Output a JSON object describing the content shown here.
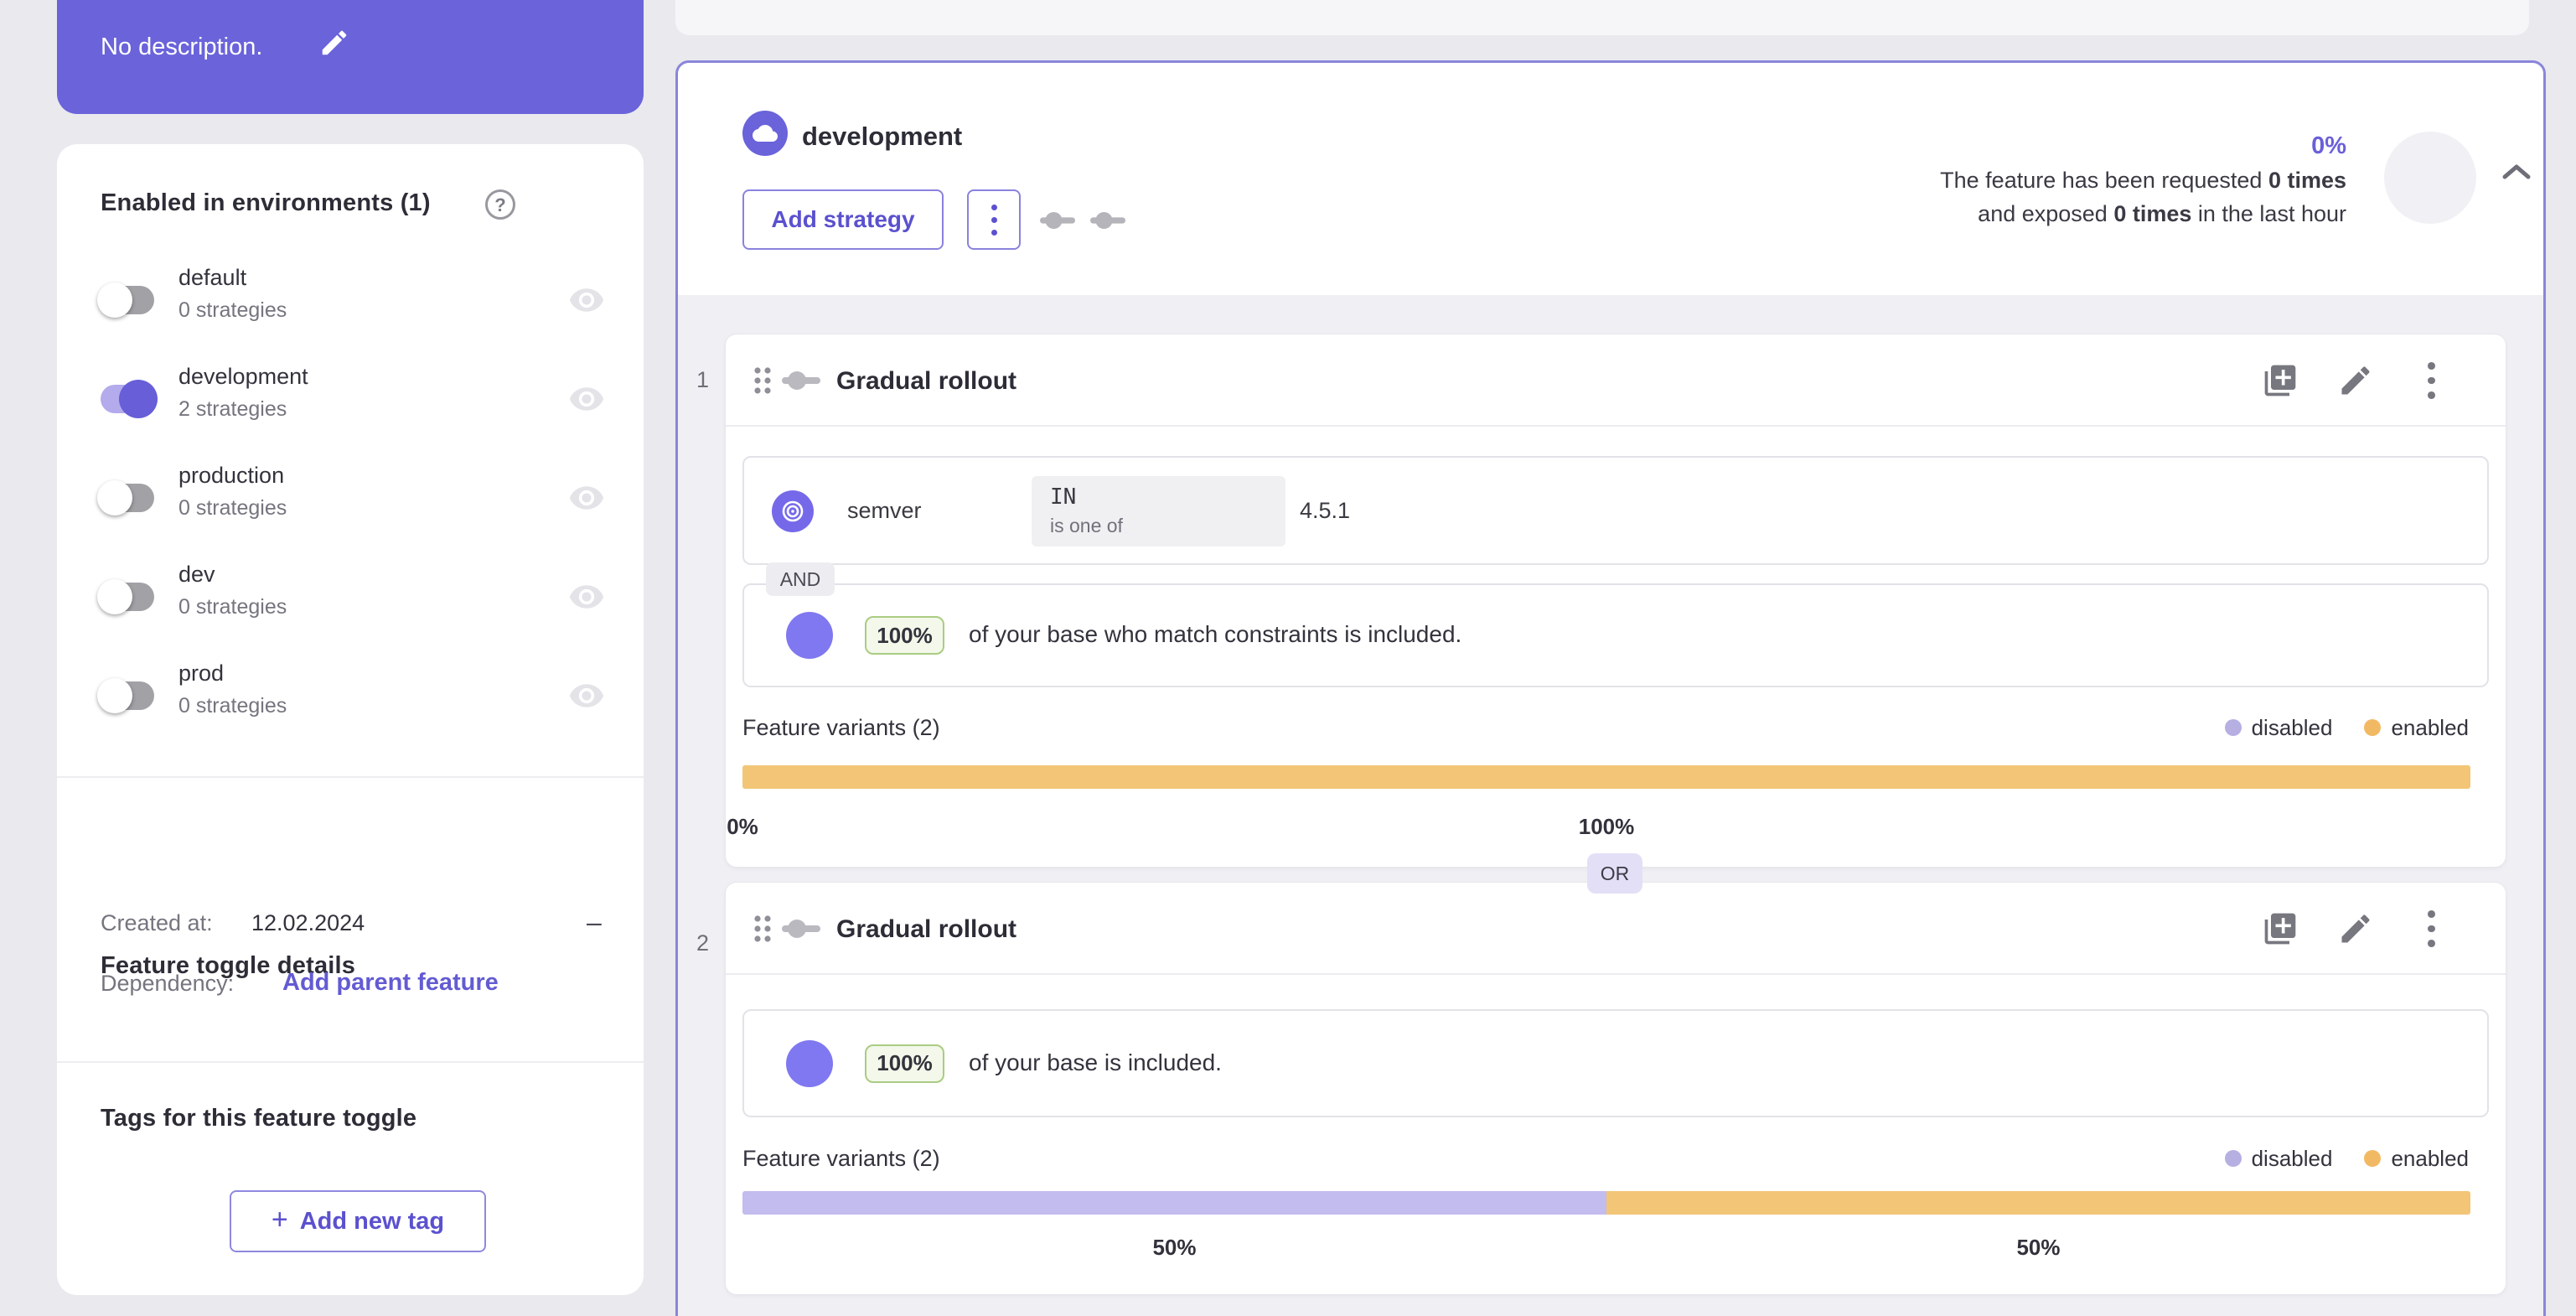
{
  "colors": {
    "accent_purple": "#6a63da",
    "link_purple": "#635bd2",
    "environment_card_border": "#8a85da",
    "bar_enabled_orange": "#f2c577",
    "bar_disabled_purple": "#c3bcee",
    "legend_disabled_dot": "#b6afe2",
    "legend_enabled_dot": "#f2b964",
    "rollout_chip_green_bg": "#f3f8ea",
    "rollout_chip_green_border": "#aacc83"
  },
  "sidebar": {
    "description": {
      "text": "No description."
    },
    "environments": {
      "title": "Enabled in environments (1)",
      "items": [
        {
          "name": "default",
          "strategies": "0 strategies",
          "enabled": false
        },
        {
          "name": "development",
          "strategies": "2 strategies",
          "enabled": true
        },
        {
          "name": "production",
          "strategies": "0 strategies",
          "enabled": false
        },
        {
          "name": "dev",
          "strategies": "0 strategies",
          "enabled": false
        },
        {
          "name": "prod",
          "strategies": "0 strategies",
          "enabled": false
        }
      ]
    },
    "details": {
      "title": "Feature toggle details",
      "created_label": "Created at:",
      "created_value": "12.02.2024",
      "dependency_label": "Dependency:",
      "dependency_action": "Add parent feature"
    },
    "tags": {
      "title": "Tags for this feature toggle",
      "add_button_plus": "+",
      "add_button": "Add new tag"
    }
  },
  "main": {
    "environment": {
      "name": "development",
      "add_strategy": "Add strategy",
      "exposure_percent": "0%",
      "stats": {
        "line1_text": "The feature has been requested ",
        "line1_bold": "0 times",
        "line2_text": "and exposed ",
        "line2_bold": "0 times",
        "line2_suffix": " in the last hour"
      }
    },
    "separator": "OR",
    "strategies": [
      {
        "index": "1",
        "title": "Gradual rollout",
        "constraint": {
          "context_field": "semver",
          "operator": "IN",
          "operator_description": "is one of",
          "value": "4.5.1",
          "conjunction": "AND"
        },
        "rollout": {
          "percent": "100%",
          "text": "of your base who match constraints is included."
        },
        "variants": {
          "label": "Feature variants (2)",
          "legend_disabled": "disabled",
          "legend_enabled": "enabled",
          "segments": [
            {
              "name": "disabled",
              "percent": 0,
              "label": "0%"
            },
            {
              "name": "enabled",
              "percent": 100,
              "label": "100%"
            }
          ]
        }
      },
      {
        "index": "2",
        "title": "Gradual rollout",
        "rollout": {
          "percent": "100%",
          "text": "of your base is included."
        },
        "variants": {
          "label": "Feature variants (2)",
          "legend_disabled": "disabled",
          "legend_enabled": "enabled",
          "segments": [
            {
              "name": "disabled",
              "percent": 50,
              "label": "50%"
            },
            {
              "name": "enabled",
              "percent": 50,
              "label": "50%"
            }
          ]
        }
      }
    ]
  }
}
